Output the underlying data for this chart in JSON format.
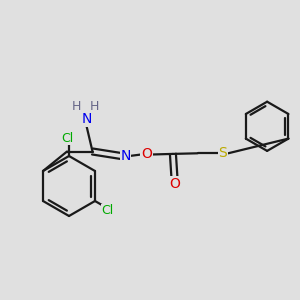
{
  "bg_color": "#e0e0e0",
  "bond_color": "#1a1a1a",
  "N_color": "#0000ee",
  "O_color": "#dd0000",
  "S_color": "#bbaa00",
  "Cl_color": "#00aa00",
  "H_color": "#666688",
  "figsize": [
    3.0,
    3.0
  ],
  "dpi": 100,
  "xlim": [
    0,
    10
  ],
  "ylim": [
    0,
    10
  ],
  "lw": 1.6,
  "fs": 10
}
